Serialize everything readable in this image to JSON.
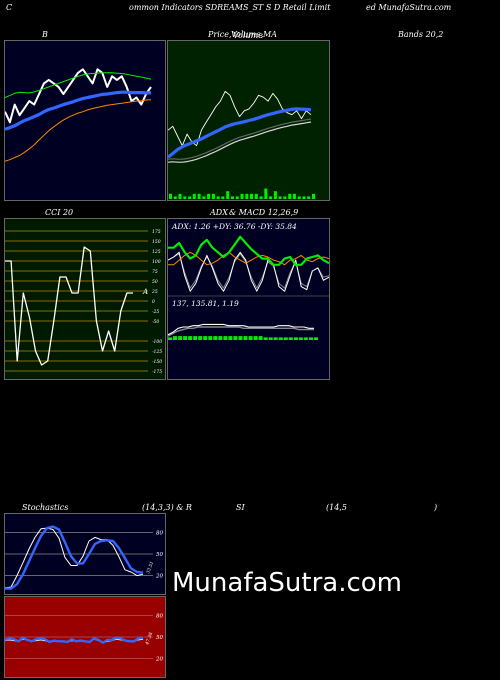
{
  "header": {
    "left": "C",
    "center": "ommon  Indicators SDREAMS_ST S D Retail Limit",
    "right": "ed MunafaSutra.com"
  },
  "panel_titles": {
    "bands": "B",
    "price_prefix": "Price,",
    "price_overlap_1": "Volume,",
    "price_overlap_2": "Volume",
    "price_suffix": "MA",
    "bands_right": "Bands 20,2",
    "cci": "CCI 20",
    "adx_left": "ADX",
    "adx_right": "& MACD 12,26,9",
    "stoch_left": "Stochastics",
    "stoch_mid": "(14,3,3) & R",
    "stoch_si": "SI",
    "stoch_params": "(14,5",
    "stoch_close": ")"
  },
  "adx_readout": "ADX: 1.26   +DY: 36.76  -DY: 35.84",
  "macd_readout": "137,   135.81,   1.19",
  "cci_marker": "A",
  "stoch_value": "33.51",
  "rsi_value": "47.38",
  "watermark": "MunafaSutra.com",
  "colors": {
    "dark_navy": "#000022",
    "price_bg": "#002200",
    "cci_bg": "#001a00",
    "rsi_bg": "#990000",
    "blue": "#3366ff",
    "green": "#00ee00",
    "orange": "#ff8800",
    "gridline": "#888888",
    "cci_grid": "#b8860b"
  },
  "chart_data": [
    {
      "type": "line",
      "panel": "bollinger",
      "series": [
        {
          "color": "#ffffff",
          "values": [
            85,
            82,
            87,
            84,
            86,
            88,
            87,
            90,
            93,
            94,
            93,
            92,
            90,
            92,
            94,
            96,
            97,
            95,
            93,
            97,
            96,
            92,
            95,
            94,
            95,
            92,
            88,
            89,
            87,
            90,
            92
          ]
        },
        {
          "color": "#3366ff",
          "values": [
            80,
            80.5,
            81,
            81.8,
            82.5,
            83,
            83.6,
            84.2,
            85,
            85.6,
            86,
            86.5,
            87,
            87.4,
            87.8,
            88.3,
            88.7,
            89,
            89.3,
            89.6,
            89.9,
            90,
            90.2,
            90.4,
            90.5,
            90.5,
            90.4,
            90.4,
            90.4,
            90.3,
            90.3
          ]
        },
        {
          "color": "#00ee00",
          "values": [
            89,
            89.6,
            90.2,
            90.5,
            90.4,
            90.3,
            90.6,
            91,
            91.5,
            92,
            92.5,
            93,
            93.5,
            94,
            94.5,
            95,
            95.4,
            95.7,
            95.8,
            95.9,
            96,
            96,
            96,
            95.9,
            95.8,
            95.6,
            95.3,
            95,
            94.8,
            94.5,
            94.2
          ]
        },
        {
          "color": "#ff8800",
          "values": [
            71,
            71.4,
            72,
            72.6,
            73.5,
            74.5,
            75.6,
            77,
            78.3,
            79.6,
            80.7,
            81.7,
            82.6,
            83.4,
            84,
            84.6,
            85,
            85.5,
            85.9,
            86.2,
            86.5,
            86.8,
            87,
            87.2,
            87.4,
            87.6,
            87.8,
            88,
            88.1,
            88.3,
            88.4
          ]
        }
      ]
    },
    {
      "type": "line",
      "panel": "price_volume_ma",
      "series": [
        {
          "color": "#ffffff",
          "values": [
            88,
            90,
            85,
            80,
            86,
            82,
            80,
            88,
            92,
            96,
            100,
            103,
            108,
            106,
            100,
            95,
            98,
            99,
            102,
            106,
            105,
            103,
            107,
            104,
            99,
            97,
            96,
            98,
            94,
            98,
            96
          ]
        },
        {
          "color": "#3366ff",
          "values": [
            74,
            76,
            78,
            79.5,
            80.5,
            81.5,
            82.5,
            83.5,
            84.8,
            86,
            87.2,
            88.4,
            89.7,
            90.6,
            91.3,
            91.8,
            92.4,
            93,
            93.6,
            94.4,
            95.2,
            96,
            96.6,
            97.3,
            97.8,
            98.3,
            98.8,
            99,
            98.9,
            98.7,
            98.5
          ]
        },
        {
          "color": "#d8d8d8",
          "values": [
            72.8,
            73,
            72.8,
            72.8,
            73.1,
            73.6,
            74.3,
            75.2,
            76.1,
            77.2,
            78.3,
            79.5,
            80.8,
            82,
            83.1,
            84.1,
            84.8,
            85.5,
            86.2,
            87,
            87.9,
            88.7,
            89.4,
            90.1,
            90.8,
            91.3,
            91.9,
            92.3,
            92.7,
            93.1,
            93.5
          ]
        },
        {
          "type": "bar",
          "color": "#00ee00",
          "name_hidden": true,
          "values": [
            2,
            1,
            2,
            1,
            1,
            2,
            2,
            1,
            2,
            2,
            1,
            1,
            3,
            1,
            1,
            2,
            2,
            2,
            2,
            1,
            4,
            1,
            3,
            1,
            1,
            2,
            2,
            1,
            1,
            1,
            2
          ]
        }
      ]
    },
    {
      "type": "line",
      "panel": "cci",
      "ylim": [
        -175,
        175
      ],
      "ticks": [
        175,
        150,
        125,
        100,
        75,
        50,
        25,
        0,
        -25,
        -50,
        -100,
        -125,
        -150,
        -175
      ],
      "tick_labels": [
        "175",
        "150",
        "125",
        "100",
        "75",
        "50",
        "25",
        "0",
        "-25",
        "-50",
        "-100",
        "-125",
        "-150",
        "-175"
      ],
      "values": [
        100,
        100,
        -150,
        20,
        -40,
        -125,
        -160,
        -150,
        -50,
        60,
        60,
        20,
        20,
        135,
        125,
        -50,
        -125,
        -75,
        -125,
        -25,
        20,
        20
      ]
    },
    {
      "type": "line",
      "panel": "adx_macd",
      "series": [
        {
          "color": "#00ee00",
          "values": [
            33,
            33,
            36,
            30,
            26,
            28,
            35,
            38,
            33,
            30,
            27,
            30,
            35,
            40,
            36,
            32,
            29,
            26,
            26,
            22,
            22,
            26,
            27,
            22,
            22,
            26,
            27,
            28,
            25,
            23
          ]
        },
        {
          "color": "#ff8800",
          "values": [
            22,
            22,
            25,
            28,
            30,
            28,
            25,
            22,
            23,
            25,
            28,
            30,
            27,
            25,
            23,
            25,
            27,
            28,
            27,
            25,
            24,
            22,
            25,
            26,
            28,
            25,
            24,
            26,
            27,
            26
          ]
        },
        {
          "color": "#ffffff",
          "values": [
            25,
            27,
            30,
            15,
            5,
            10,
            20,
            28,
            20,
            10,
            5,
            12,
            25,
            30,
            25,
            12,
            5,
            12,
            25,
            22,
            8,
            5,
            15,
            25,
            8,
            6,
            18,
            20,
            12,
            14
          ]
        },
        {
          "color": "#888888",
          "values": [
            25,
            27,
            29,
            17,
            7,
            12,
            21,
            27,
            21,
            12,
            7,
            14,
            24,
            29,
            24,
            14,
            7,
            14,
            24,
            21,
            10,
            7,
            17,
            24,
            10,
            8,
            18,
            20,
            14,
            15
          ]
        }
      ],
      "macd": {
        "white": [
          4,
          6,
          9,
          10,
          10,
          11,
          11,
          12,
          12,
          12,
          12,
          12,
          11,
          11,
          11,
          11,
          10,
          10,
          10,
          10,
          10,
          10,
          11,
          11,
          11,
          10,
          10,
          10,
          9,
          9
        ],
        "gray": [
          3,
          5,
          7,
          8,
          9,
          9,
          10,
          10,
          10,
          10,
          10,
          10,
          10,
          10,
          10,
          9,
          9,
          9,
          9,
          9,
          9,
          9,
          9,
          9,
          9,
          9,
          8,
          8,
          8,
          8
        ],
        "green": [
          2,
          3,
          3,
          3,
          3,
          3,
          3,
          3,
          3,
          3,
          3,
          3,
          3,
          3,
          3,
          3,
          3,
          3,
          3,
          2,
          2,
          2,
          2,
          2,
          2,
          2,
          2,
          2,
          2,
          2
        ]
      }
    },
    {
      "type": "line",
      "panel": "stochastics",
      "ylim": [
        0,
        100
      ],
      "tick_labels": [
        "80",
        "50",
        "20"
      ],
      "series": [
        {
          "color": "#ffffff",
          "values": [
            3,
            4,
            20,
            38,
            57,
            73,
            85,
            86,
            84,
            72,
            45,
            34,
            34,
            47,
            68,
            73,
            70,
            70,
            62,
            46,
            28,
            25,
            20,
            22
          ]
        },
        {
          "color": "#3366ff",
          "values": [
            2,
            2,
            8,
            22,
            40,
            58,
            75,
            86,
            88,
            84,
            66,
            47,
            37,
            37,
            50,
            64,
            68,
            69,
            68,
            58,
            44,
            30,
            25,
            24
          ]
        }
      ]
    },
    {
      "type": "line",
      "panel": "rsi",
      "ylim": [
        0,
        100
      ],
      "tick_labels": [
        "80",
        "50",
        "20"
      ],
      "series": [
        {
          "color": "#ffffff",
          "values": [
            45,
            46,
            45,
            44,
            47,
            46,
            44,
            45,
            46,
            45,
            43,
            44,
            44,
            44,
            43,
            45,
            44,
            44,
            44,
            43,
            47,
            45,
            42,
            44,
            45,
            47,
            46,
            45,
            44,
            44,
            46,
            47
          ]
        },
        {
          "color": "#3366ff",
          "values": [
            46,
            48,
            47,
            44,
            49,
            46,
            44,
            47,
            48,
            47,
            43,
            45,
            44,
            44,
            43,
            47,
            44,
            45,
            44,
            43,
            48,
            46,
            42,
            46,
            46,
            49,
            48,
            45,
            44,
            44,
            48,
            49
          ]
        }
      ]
    }
  ]
}
